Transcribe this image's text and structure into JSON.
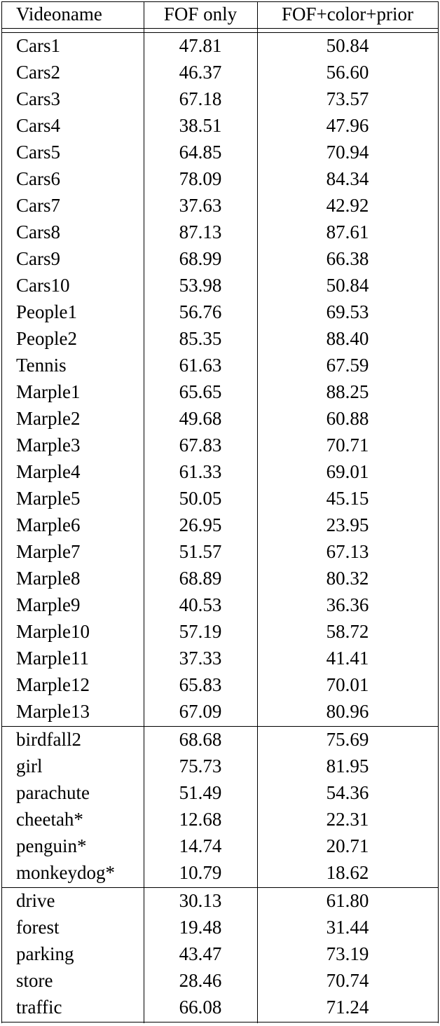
{
  "table": {
    "header": [
      "Videoname",
      "FOF only",
      "FOF+color+prior"
    ],
    "groups": [
      [
        [
          "Cars1",
          "47.81",
          "50.84"
        ],
        [
          "Cars2",
          "46.37",
          "56.60"
        ],
        [
          "Cars3",
          "67.18",
          "73.57"
        ],
        [
          "Cars4",
          "38.51",
          "47.96"
        ],
        [
          "Cars5",
          "64.85",
          "70.94"
        ],
        [
          "Cars6",
          "78.09",
          "84.34"
        ],
        [
          "Cars7",
          "37.63",
          "42.92"
        ],
        [
          "Cars8",
          "87.13",
          "87.61"
        ],
        [
          "Cars9",
          "68.99",
          "66.38"
        ],
        [
          "Cars10",
          "53.98",
          "50.84"
        ],
        [
          "People1",
          "56.76",
          "69.53"
        ],
        [
          "People2",
          "85.35",
          "88.40"
        ],
        [
          "Tennis",
          "61.63",
          "67.59"
        ],
        [
          "Marple1",
          "65.65",
          "88.25"
        ],
        [
          "Marple2",
          "49.68",
          "60.88"
        ],
        [
          "Marple3",
          "67.83",
          "70.71"
        ],
        [
          "Marple4",
          "61.33",
          "69.01"
        ],
        [
          "Marple5",
          "50.05",
          "45.15"
        ],
        [
          "Marple6",
          "26.95",
          "23.95"
        ],
        [
          "Marple7",
          "51.57",
          "67.13"
        ],
        [
          "Marple8",
          "68.89",
          "80.32"
        ],
        [
          "Marple9",
          "40.53",
          "36.36"
        ],
        [
          "Marple10",
          "57.19",
          "58.72"
        ],
        [
          "Marple11",
          "37.33",
          "41.41"
        ],
        [
          "Marple12",
          "65.83",
          "70.01"
        ],
        [
          "Marple13",
          "67.09",
          "80.96"
        ]
      ],
      [
        [
          "birdfall2",
          "68.68",
          "75.69"
        ],
        [
          "girl",
          "75.73",
          "81.95"
        ],
        [
          "parachute",
          "51.49",
          "54.36"
        ],
        [
          "cheetah*",
          "12.68",
          "22.31"
        ],
        [
          "penguin*",
          "14.74",
          "20.71"
        ],
        [
          "monkeydog*",
          "10.79",
          "18.62"
        ]
      ],
      [
        [
          "drive",
          "30.13",
          "61.80"
        ],
        [
          "forest",
          "19.48",
          "31.44"
        ],
        [
          "parking",
          "43.47",
          "73.19"
        ],
        [
          "store",
          "28.46",
          "70.74"
        ],
        [
          "traffic",
          "66.08",
          "71.24"
        ]
      ]
    ]
  }
}
